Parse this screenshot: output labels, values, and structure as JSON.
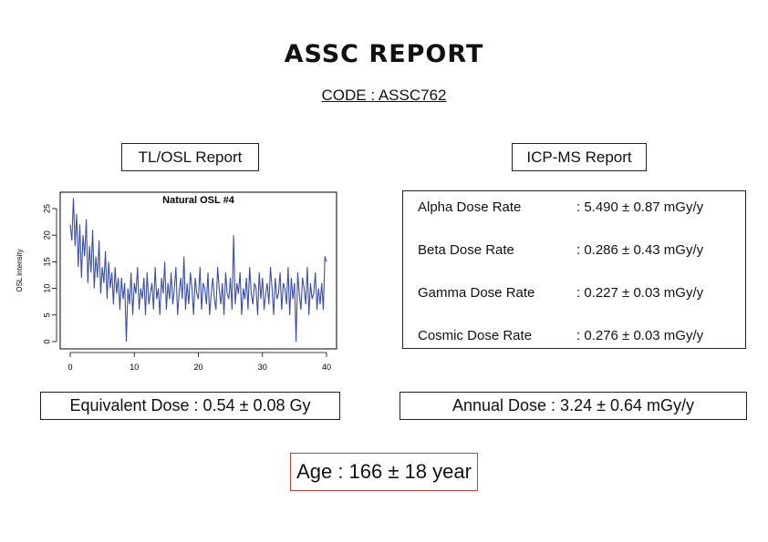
{
  "report": {
    "title": "ASSC REPORT",
    "code": "CODE : ASSC762"
  },
  "tlosl": {
    "heading": "TL/OSL Report",
    "equivalent_dose": "Equivalent Dose : 0.54 ± 0.08 Gy"
  },
  "icpms": {
    "heading": "ICP-MS Report",
    "rows": [
      {
        "label": "Alpha Dose Rate",
        "value": ": 5.490 ± 0.87 mGy/y"
      },
      {
        "label": "Beta Dose Rate",
        "value": ": 0.286 ± 0.43 mGy/y"
      },
      {
        "label": "Gamma Dose Rate",
        "value": ": 0.227 ± 0.03 mGy/y"
      },
      {
        "label": "Cosmic Dose Rate",
        "value": ": 0.276 ± 0.03 mGy/y"
      }
    ],
    "annual_dose": "Annual Dose : 3.24 ± 0.64 mGy/y"
  },
  "age": "Age : 166 ± 18 year",
  "colors": {
    "line": "#3b4fa8",
    "age_border": "#d93a3a"
  },
  "chart_data": {
    "type": "line",
    "title": "Natural OSL #4",
    "xlabel": "",
    "ylabel": "OSL intensity",
    "xlim": [
      0,
      40
    ],
    "ylim": [
      0,
      27
    ],
    "xticks": [
      "0",
      "10",
      "20",
      "30",
      "40"
    ],
    "yticks": [
      "0",
      "5",
      "10",
      "15",
      "20",
      "25"
    ],
    "grid": false,
    "x": [
      0,
      0.25,
      0.5,
      0.75,
      1,
      1.25,
      1.5,
      1.75,
      2,
      2.25,
      2.5,
      2.75,
      3,
      3.25,
      3.5,
      3.75,
      4,
      4.25,
      4.5,
      4.75,
      5,
      5.25,
      5.5,
      5.75,
      6,
      6.25,
      6.5,
      6.75,
      7,
      7.25,
      7.5,
      7.75,
      8,
      8.25,
      8.5,
      8.75,
      9,
      9.25,
      9.5,
      9.75,
      10,
      10.25,
      10.5,
      10.75,
      11,
      11.25,
      11.5,
      11.75,
      12,
      12.25,
      12.5,
      12.75,
      13,
      13.25,
      13.5,
      13.75,
      14,
      14.25,
      14.5,
      14.75,
      15,
      15.25,
      15.5,
      15.75,
      16,
      16.25,
      16.5,
      16.75,
      17,
      17.25,
      17.5,
      17.75,
      18,
      18.25,
      18.5,
      18.75,
      19,
      19.25,
      19.5,
      19.75,
      20,
      20.25,
      20.5,
      20.75,
      21,
      21.25,
      21.5,
      21.75,
      22,
      22.25,
      22.5,
      22.75,
      23,
      23.25,
      23.5,
      23.75,
      24,
      24.25,
      24.5,
      24.75,
      25,
      25.25,
      25.5,
      25.75,
      26,
      26.25,
      26.5,
      26.75,
      27,
      27.25,
      27.5,
      27.75,
      28,
      28.25,
      28.5,
      28.75,
      29,
      29.25,
      29.5,
      29.75,
      30,
      30.25,
      30.5,
      30.75,
      31,
      31.25,
      31.5,
      31.75,
      32,
      32.25,
      32.5,
      32.75,
      33,
      33.25,
      33.5,
      33.75,
      34,
      34.25,
      34.5,
      34.75,
      35,
      35.25,
      35.5,
      35.75,
      36,
      36.25,
      36.5,
      36.75,
      37,
      37.25,
      37.5,
      37.75,
      38,
      38.25,
      38.5,
      38.75,
      39,
      39.25,
      39.5,
      39.75,
      40
    ],
    "y": [
      22,
      19,
      27,
      18,
      24,
      14,
      22,
      12,
      20,
      16,
      23,
      11,
      18,
      13,
      21,
      10,
      16,
      12,
      19,
      9,
      14,
      11,
      17,
      8,
      15,
      10,
      13,
      7,
      14,
      9,
      12,
      6,
      12,
      8,
      11,
      0,
      10,
      7,
      13,
      5,
      11,
      9,
      14,
      6,
      10,
      8,
      12,
      5,
      13,
      7,
      9,
      11,
      6,
      14,
      8,
      10,
      5,
      12,
      9,
      15,
      6,
      11,
      8,
      13,
      7,
      10,
      14,
      5,
      9,
      12,
      8,
      16,
      6,
      11,
      7,
      13,
      10,
      5,
      12,
      9,
      8,
      14,
      6,
      11,
      10,
      7,
      13,
      5,
      9,
      12,
      8,
      6,
      14,
      10,
      7,
      11,
      5,
      13,
      9,
      8,
      12,
      6,
      20,
      7,
      11,
      9,
      13,
      5,
      10,
      8,
      12,
      6,
      14,
      9,
      7,
      11,
      10,
      5,
      13,
      8,
      12,
      6,
      9,
      11,
      7,
      14,
      10,
      5,
      12,
      8,
      9,
      13,
      6,
      11,
      10,
      7,
      14,
      5,
      12,
      8,
      11,
      0,
      13,
      9,
      6,
      12,
      10,
      7,
      14,
      5,
      11,
      8,
      9,
      13,
      6,
      10,
      7,
      11,
      6,
      16,
      15
    ]
  }
}
